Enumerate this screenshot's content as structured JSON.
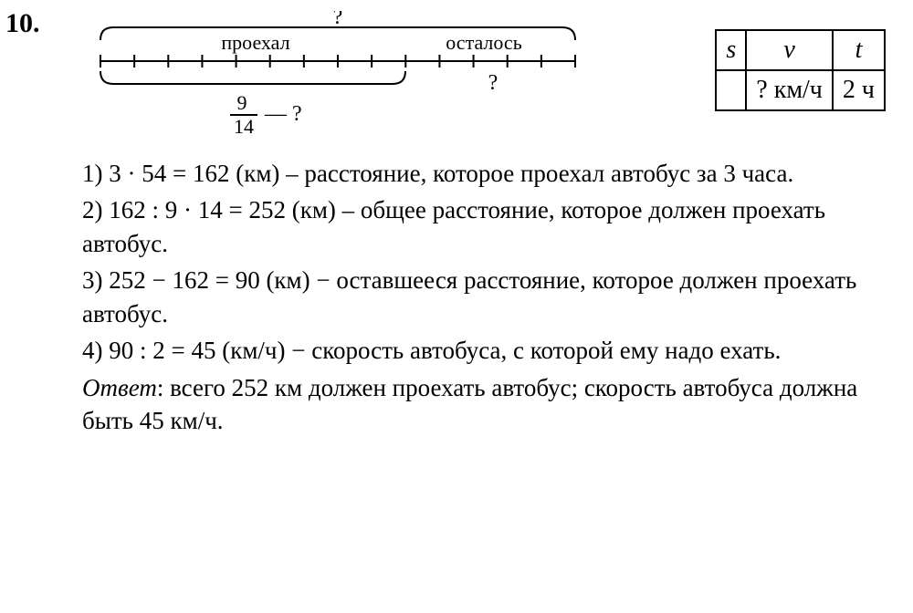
{
  "problem_number": "10.",
  "diagram": {
    "top_question": "?",
    "label_left": "проехал",
    "label_right": "осталось",
    "right_question": "?",
    "fraction_num": "9",
    "fraction_den": "14",
    "fraction_tail": "— ?",
    "total_ticks": 14,
    "traveled_ticks": 9,
    "stroke": "#000000",
    "stroke_width": 2
  },
  "svt": {
    "headers": {
      "s": "s",
      "v": "v",
      "t": "t"
    },
    "row": {
      "s": "",
      "v": "? км/ч",
      "t": "2 ч"
    }
  },
  "steps": [
    {
      "lead": "1) 3 · 54 = 162 (км)",
      "desc": " – расстояние, которое проехал автобус за 3 часа."
    },
    {
      "lead": "2) 162 : 9 · 14 = 252 (км)",
      "desc": " –  общее расстояние, которое должен проехать автобус."
    },
    {
      "lead": "3) 252 − 162 = 90 (км)",
      "desc": " − оставшееся расстояние, которое должен проехать автобус."
    },
    {
      "lead": "4) 90 : 2 = 45 (км/ч)",
      "desc": " − скорость автобуса, с которой ему надо ехать."
    }
  ],
  "answer": {
    "label": "Ответ",
    "text": ": всего 252 км должен проехать автобус; скорость автобуса должна быть 45 км/ч."
  }
}
